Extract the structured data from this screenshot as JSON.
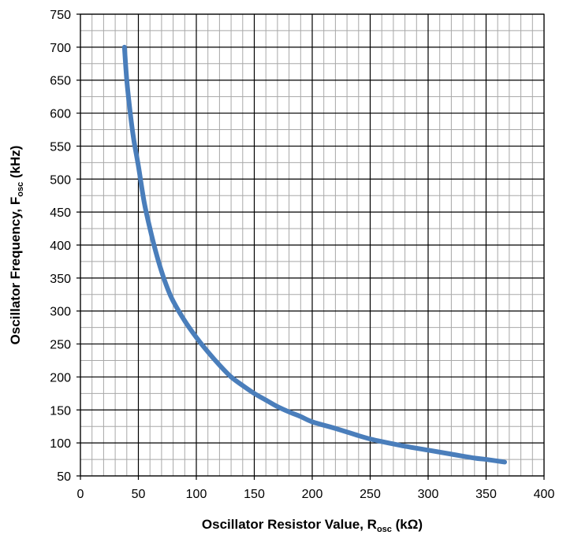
{
  "chart_data": {
    "type": "line",
    "title": "",
    "xlabel": {
      "main": "Oscillator Resistor Value, R",
      "sub": "osc",
      "unit": " (kΩ)"
    },
    "ylabel": {
      "main": "Oscillator Frequency, F",
      "sub": "osc",
      "unit": " (kHz)"
    },
    "xlim": [
      0,
      400
    ],
    "ylim": [
      50,
      750
    ],
    "x_ticks": [
      0,
      50,
      100,
      150,
      200,
      250,
      300,
      350,
      400
    ],
    "y_ticks": [
      50,
      100,
      150,
      200,
      250,
      300,
      350,
      400,
      450,
      500,
      550,
      600,
      650,
      700,
      750
    ],
    "x_minor_step": 10,
    "y_minor_step": 25,
    "grid": true,
    "legend": "none",
    "series": [
      {
        "color": "#4a7ebb",
        "points": [
          [
            38,
            700
          ],
          [
            40,
            650
          ],
          [
            43,
            600
          ],
          [
            46,
            560
          ],
          [
            50,
            520
          ],
          [
            55,
            465
          ],
          [
            60,
            425
          ],
          [
            65,
            390
          ],
          [
            70,
            360
          ],
          [
            75,
            335
          ],
          [
            80,
            315
          ],
          [
            90,
            285
          ],
          [
            100,
            260
          ],
          [
            110,
            238
          ],
          [
            120,
            218
          ],
          [
            130,
            200
          ],
          [
            140,
            187
          ],
          [
            150,
            175
          ],
          [
            160,
            165
          ],
          [
            170,
            155
          ],
          [
            180,
            147
          ],
          [
            190,
            140
          ],
          [
            200,
            132
          ],
          [
            220,
            122
          ],
          [
            240,
            111
          ],
          [
            250,
            106
          ],
          [
            260,
            102
          ],
          [
            280,
            95
          ],
          [
            300,
            89
          ],
          [
            320,
            83
          ],
          [
            340,
            77
          ],
          [
            350,
            75
          ],
          [
            366,
            71
          ]
        ]
      }
    ]
  }
}
